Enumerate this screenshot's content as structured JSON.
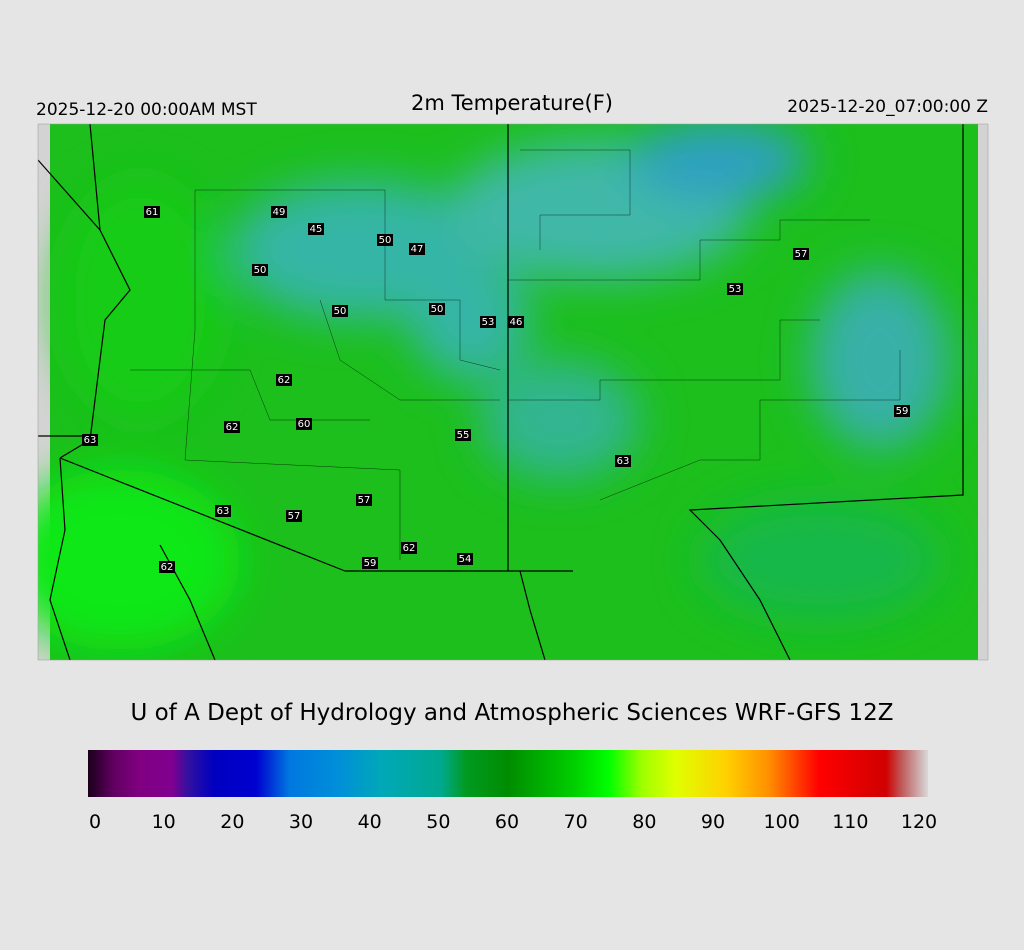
{
  "header": {
    "left": "2025-12-20 00:00AM MST",
    "title": "2m Temperature(F)",
    "right": "2025-12-20_07:00:00 Z"
  },
  "stations": [
    61,
    49,
    45,
    50,
    47,
    50,
    50,
    50,
    53,
    46,
    53,
    57,
    62,
    62,
    60,
    55,
    63,
    63,
    59,
    57,
    63,
    57,
    62,
    59,
    54,
    62
  ],
  "credit": "U of A Dept of Hydrology and Atmospheric Sciences WRF-GFS 12Z",
  "colorbar": {
    "ticks": [
      0,
      10,
      20,
      30,
      40,
      50,
      60,
      70,
      80,
      90,
      100,
      110,
      120
    ]
  }
}
